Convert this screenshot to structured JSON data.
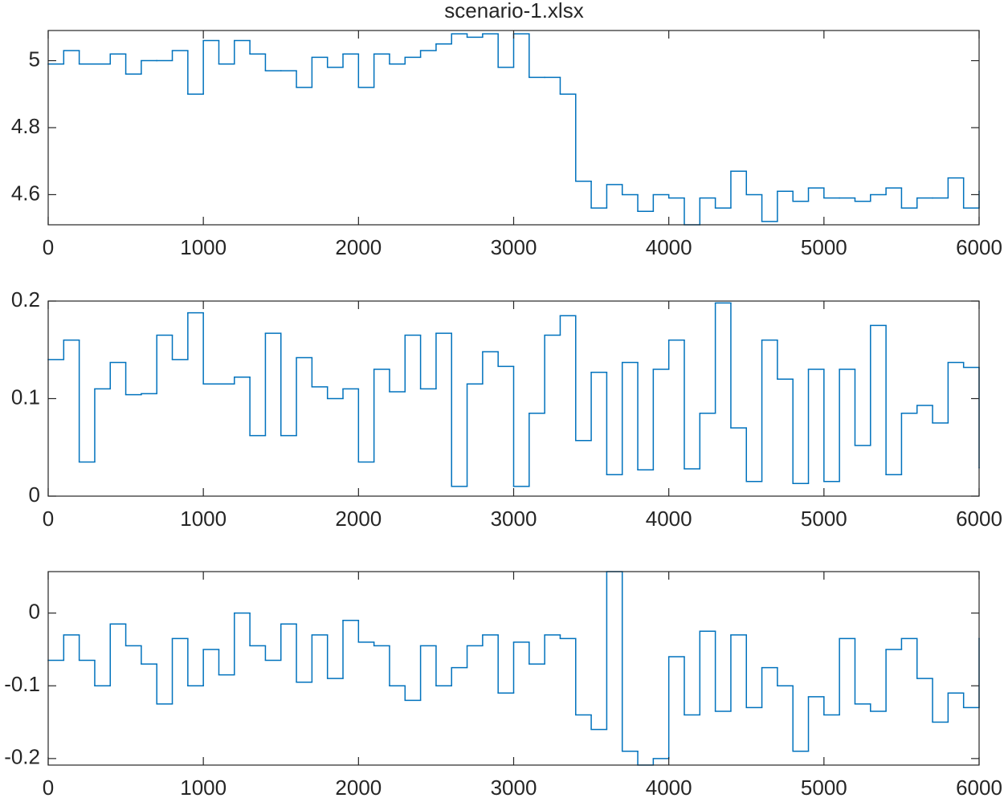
{
  "chart_data": [
    {
      "type": "step",
      "title": "scenario-1.xlsx",
      "color": "#0072bd",
      "grid": false,
      "x": [
        0,
        100,
        200,
        300,
        400,
        500,
        600,
        700,
        800,
        900,
        1000,
        1100,
        1200,
        1300,
        1400,
        1500,
        1600,
        1700,
        1800,
        1900,
        2000,
        2100,
        2200,
        2300,
        2400,
        2500,
        2600,
        2700,
        2800,
        2900,
        3000,
        3100,
        3200,
        3300,
        3400,
        3500,
        3600,
        3700,
        3800,
        3900,
        4000,
        4100,
        4200,
        4300,
        4400,
        4500,
        4600,
        4700,
        4800,
        4900,
        5000,
        5100,
        5200,
        5300,
        5400,
        5500,
        5600,
        5700,
        5800,
        5900,
        6000
      ],
      "values": [
        4.99,
        5.03,
        4.99,
        4.99,
        5.02,
        4.96,
        5.0,
        5.0,
        5.03,
        4.9,
        5.06,
        4.99,
        5.06,
        5.02,
        4.97,
        4.97,
        4.92,
        5.01,
        4.98,
        5.02,
        4.92,
        5.02,
        4.99,
        5.01,
        5.03,
        5.05,
        5.08,
        5.07,
        5.08,
        4.98,
        5.08,
        4.95,
        4.95,
        4.9,
        4.64,
        4.56,
        4.63,
        4.6,
        4.55,
        4.6,
        4.59,
        4.51,
        4.59,
        4.56,
        4.67,
        4.6,
        4.52,
        4.61,
        4.58,
        4.62,
        4.59,
        4.59,
        4.58,
        4.6,
        4.62,
        4.56,
        4.59,
        4.59,
        4.65,
        4.56,
        4.61
      ],
      "xlim": [
        0,
        6000
      ],
      "xticks": [
        0,
        1000,
        2000,
        3000,
        4000,
        5000,
        6000
      ],
      "ylim": [
        4.51,
        5.09
      ],
      "yticks": [
        4.6,
        4.8,
        5
      ]
    },
    {
      "type": "step",
      "color": "#0072bd",
      "grid": false,
      "x": [
        0,
        100,
        200,
        300,
        400,
        500,
        600,
        700,
        800,
        900,
        1000,
        1100,
        1200,
        1300,
        1400,
        1500,
        1600,
        1700,
        1800,
        1900,
        2000,
        2100,
        2200,
        2300,
        2400,
        2500,
        2600,
        2700,
        2800,
        2900,
        3000,
        3100,
        3200,
        3300,
        3400,
        3500,
        3600,
        3700,
        3800,
        3900,
        4000,
        4100,
        4200,
        4300,
        4400,
        4500,
        4600,
        4700,
        4800,
        4900,
        5000,
        5100,
        5200,
        5300,
        5400,
        5500,
        5600,
        5700,
        5800,
        5900,
        6000
      ],
      "values": [
        0.14,
        0.16,
        0.035,
        0.11,
        0.137,
        0.104,
        0.105,
        0.165,
        0.14,
        0.188,
        0.115,
        0.115,
        0.122,
        0.062,
        0.167,
        0.062,
        0.142,
        0.112,
        0.1,
        0.11,
        0.035,
        0.13,
        0.107,
        0.165,
        0.11,
        0.167,
        0.01,
        0.115,
        0.148,
        0.133,
        0.01,
        0.085,
        0.165,
        0.185,
        0.057,
        0.127,
        0.022,
        0.137,
        0.027,
        0.13,
        0.16,
        0.028,
        0.085,
        0.198,
        0.07,
        0.015,
        0.16,
        0.12,
        0.013,
        0.13,
        0.015,
        0.13,
        0.052,
        0.175,
        0.022,
        0.085,
        0.093,
        0.075,
        0.137,
        0.132,
        0.029
      ],
      "xlim": [
        0,
        6000
      ],
      "xticks": [
        0,
        1000,
        2000,
        3000,
        4000,
        5000,
        6000
      ],
      "ylim": [
        0,
        0.2
      ],
      "yticks": [
        0,
        0.1,
        0.2
      ]
    },
    {
      "type": "step",
      "color": "#0072bd",
      "grid": false,
      "x": [
        0,
        100,
        200,
        300,
        400,
        500,
        600,
        700,
        800,
        900,
        1000,
        1100,
        1200,
        1300,
        1400,
        1500,
        1600,
        1700,
        1800,
        1900,
        2000,
        2100,
        2200,
        2300,
        2400,
        2500,
        2600,
        2700,
        2800,
        2900,
        3000,
        3100,
        3200,
        3300,
        3400,
        3500,
        3600,
        3700,
        3800,
        3900,
        4000,
        4100,
        4200,
        4300,
        4400,
        4500,
        4600,
        4700,
        4800,
        4900,
        5000,
        5100,
        5200,
        5300,
        5400,
        5500,
        5600,
        5700,
        5800,
        5900,
        6000
      ],
      "values": [
        -0.065,
        -0.03,
        -0.065,
        -0.1,
        -0.015,
        -0.045,
        -0.07,
        -0.125,
        -0.035,
        -0.1,
        -0.05,
        -0.085,
        0,
        -0.045,
        -0.065,
        -0.015,
        -0.095,
        -0.03,
        -0.09,
        -0.01,
        -0.04,
        -0.045,
        -0.1,
        -0.12,
        -0.045,
        -0.1,
        -0.075,
        -0.045,
        -0.03,
        -0.11,
        -0.04,
        -0.07,
        -0.03,
        -0.035,
        -0.14,
        -0.16,
        0.057,
        -0.19,
        -0.209,
        -0.2,
        -0.06,
        -0.14,
        -0.025,
        -0.135,
        -0.03,
        -0.13,
        -0.075,
        -0.1,
        -0.19,
        -0.115,
        -0.14,
        -0.035,
        -0.125,
        -0.135,
        -0.05,
        -0.035,
        -0.09,
        -0.15,
        -0.11,
        -0.13,
        -0.035
      ],
      "xlim": [
        0,
        6000
      ],
      "xticks": [
        0,
        1000,
        2000,
        3000,
        4000,
        5000,
        6000
      ],
      "ylim": [
        -0.209,
        0.057
      ],
      "yticks": [
        -0.2,
        -0.1,
        0
      ]
    }
  ]
}
